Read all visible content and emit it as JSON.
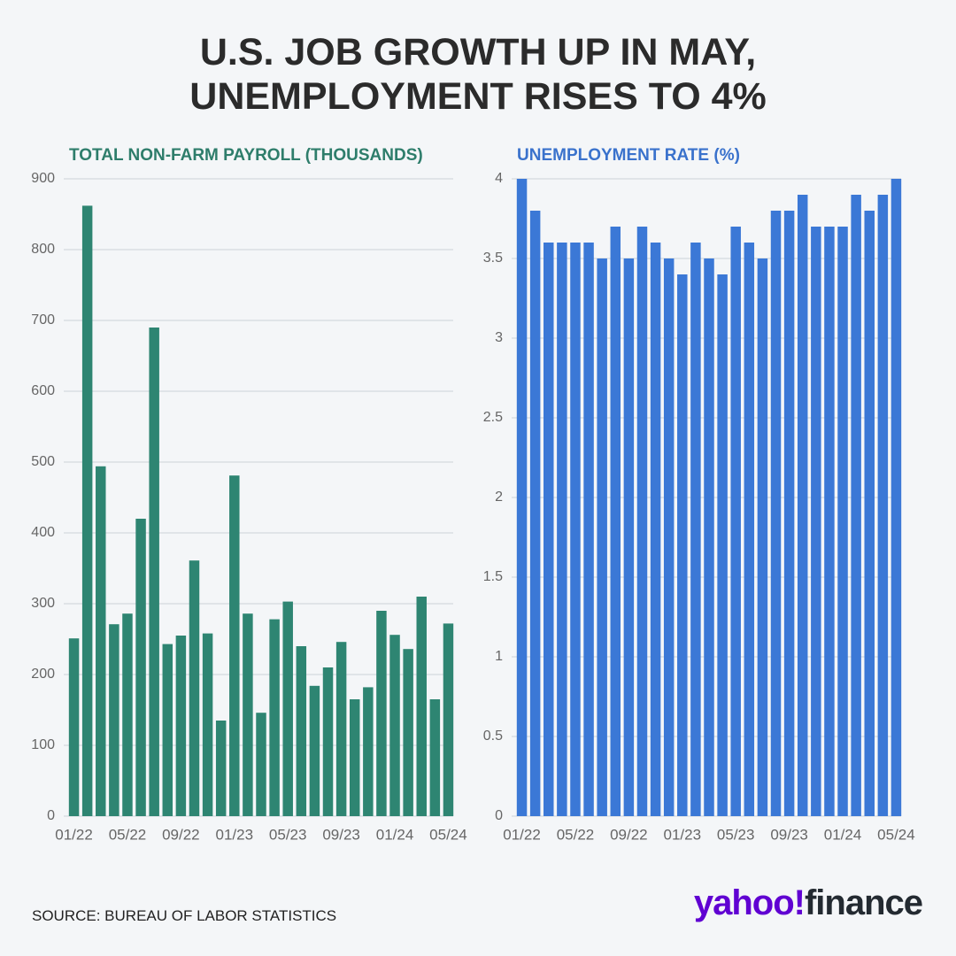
{
  "title": "U.S. JOB GROWTH UP IN MAY, UNEMPLOYMENT RISES TO 4%",
  "source": "SOURCE: BUREAU OF LABOR STATISTICS",
  "logo": {
    "brand": "yahoo!",
    "product": "finance"
  },
  "chart_data": [
    {
      "type": "bar",
      "title": "TOTAL NON-FARM PAYROLL (THOUSANDS)",
      "title_color": "#2e7d6b",
      "color": "#2e8572",
      "categories": [
        "01/22",
        null,
        null,
        null,
        "05/22",
        null,
        null,
        null,
        "09/22",
        null,
        null,
        null,
        "01/23",
        null,
        null,
        null,
        "05/23",
        null,
        null,
        null,
        "09/23",
        null,
        null,
        null,
        "01/24",
        null,
        null,
        null,
        "05/24"
      ],
      "values": [
        251,
        862,
        494,
        271,
        286,
        420,
        690,
        243,
        255,
        361,
        258,
        135,
        481,
        286,
        146,
        278,
        303,
        240,
        184,
        210,
        246,
        165,
        182,
        290,
        256,
        236,
        310,
        165,
        272
      ],
      "ylim": [
        0,
        900
      ],
      "yticks": [
        0,
        100,
        200,
        300,
        400,
        500,
        600,
        700,
        800,
        900
      ],
      "grid": true
    },
    {
      "type": "bar",
      "title": "UNEMPLOYMENT RATE (%)",
      "title_color": "#3a72cc",
      "color": "#3b78d6",
      "categories": [
        "01/22",
        null,
        null,
        null,
        "05/22",
        null,
        null,
        null,
        "09/22",
        null,
        null,
        null,
        "01/23",
        null,
        null,
        null,
        "05/23",
        null,
        null,
        null,
        "09/23",
        null,
        null,
        null,
        "01/24",
        null,
        null,
        null,
        "05/24"
      ],
      "values": [
        4.0,
        3.8,
        3.6,
        3.6,
        3.6,
        3.6,
        3.5,
        3.7,
        3.5,
        3.7,
        3.6,
        3.5,
        3.4,
        3.6,
        3.5,
        3.4,
        3.7,
        3.6,
        3.5,
        3.8,
        3.8,
        3.9,
        3.7,
        3.7,
        3.7,
        3.9,
        3.8,
        3.9,
        4.0
      ],
      "ylim": [
        0,
        4
      ],
      "yticks": [
        0,
        0.5,
        1,
        1.5,
        2,
        2.5,
        3,
        3.5,
        4
      ],
      "grid": true
    }
  ]
}
